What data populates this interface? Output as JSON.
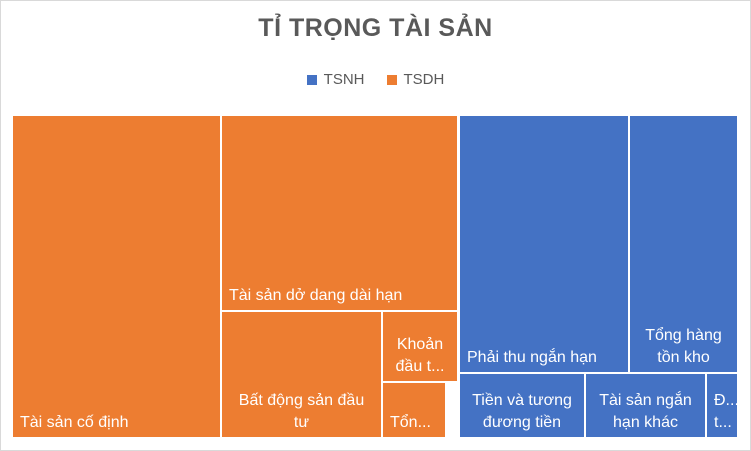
{
  "colors": {
    "TSNH": "#4472c4",
    "TSDH": "#ed7d31"
  },
  "chart_data": {
    "type": "treemap",
    "title": "TỈ TRỌNG TÀI SẢN",
    "legend": {
      "placement": "top",
      "entries": [
        "TSNH",
        "TSDH"
      ]
    },
    "groups": [
      {
        "name": "TSDH",
        "items": [
          {
            "name": "Tài sản cố định",
            "label": [
              "Tài sản cố định"
            ],
            "value": 100
          },
          {
            "name": "Tài sản dở dang dài hạn",
            "label": [
              "Tài sản dở dang dài hạn"
            ],
            "value": 53
          },
          {
            "name": "Bất động sản đầu tư",
            "label": [
              "Bất động sản đầu",
              "tư"
            ],
            "value": 34
          },
          {
            "name": "Khoản đầu tư",
            "label": [
              "Khoản",
              "đầu t..."
            ],
            "value": 9
          },
          {
            "name": "Tổng",
            "label": [
              "Tổn..."
            ],
            "value": 7
          }
        ]
      },
      {
        "name": "TSNH",
        "items": [
          {
            "name": "Phải thu ngắn hạn",
            "label": [
              "Phải thu ngắn hạn"
            ],
            "value": 51
          },
          {
            "name": "Tổng hàng tồn kho",
            "label": [
              "Tổng hàng",
              "tồn kho"
            ],
            "value": 31
          },
          {
            "name": "Tiền và tương đương tiền",
            "label": [
              "Tiền và tương",
              "đương tiền"
            ],
            "value": 15
          },
          {
            "name": "Tài sản ngắn hạn khác",
            "label": [
              "Tài sản ngắn",
              "hạn khác"
            ],
            "value": 14
          },
          {
            "name": "Đ...",
            "label": [
              "Đ...",
              "t..."
            ],
            "value": 3
          }
        ]
      }
    ]
  }
}
